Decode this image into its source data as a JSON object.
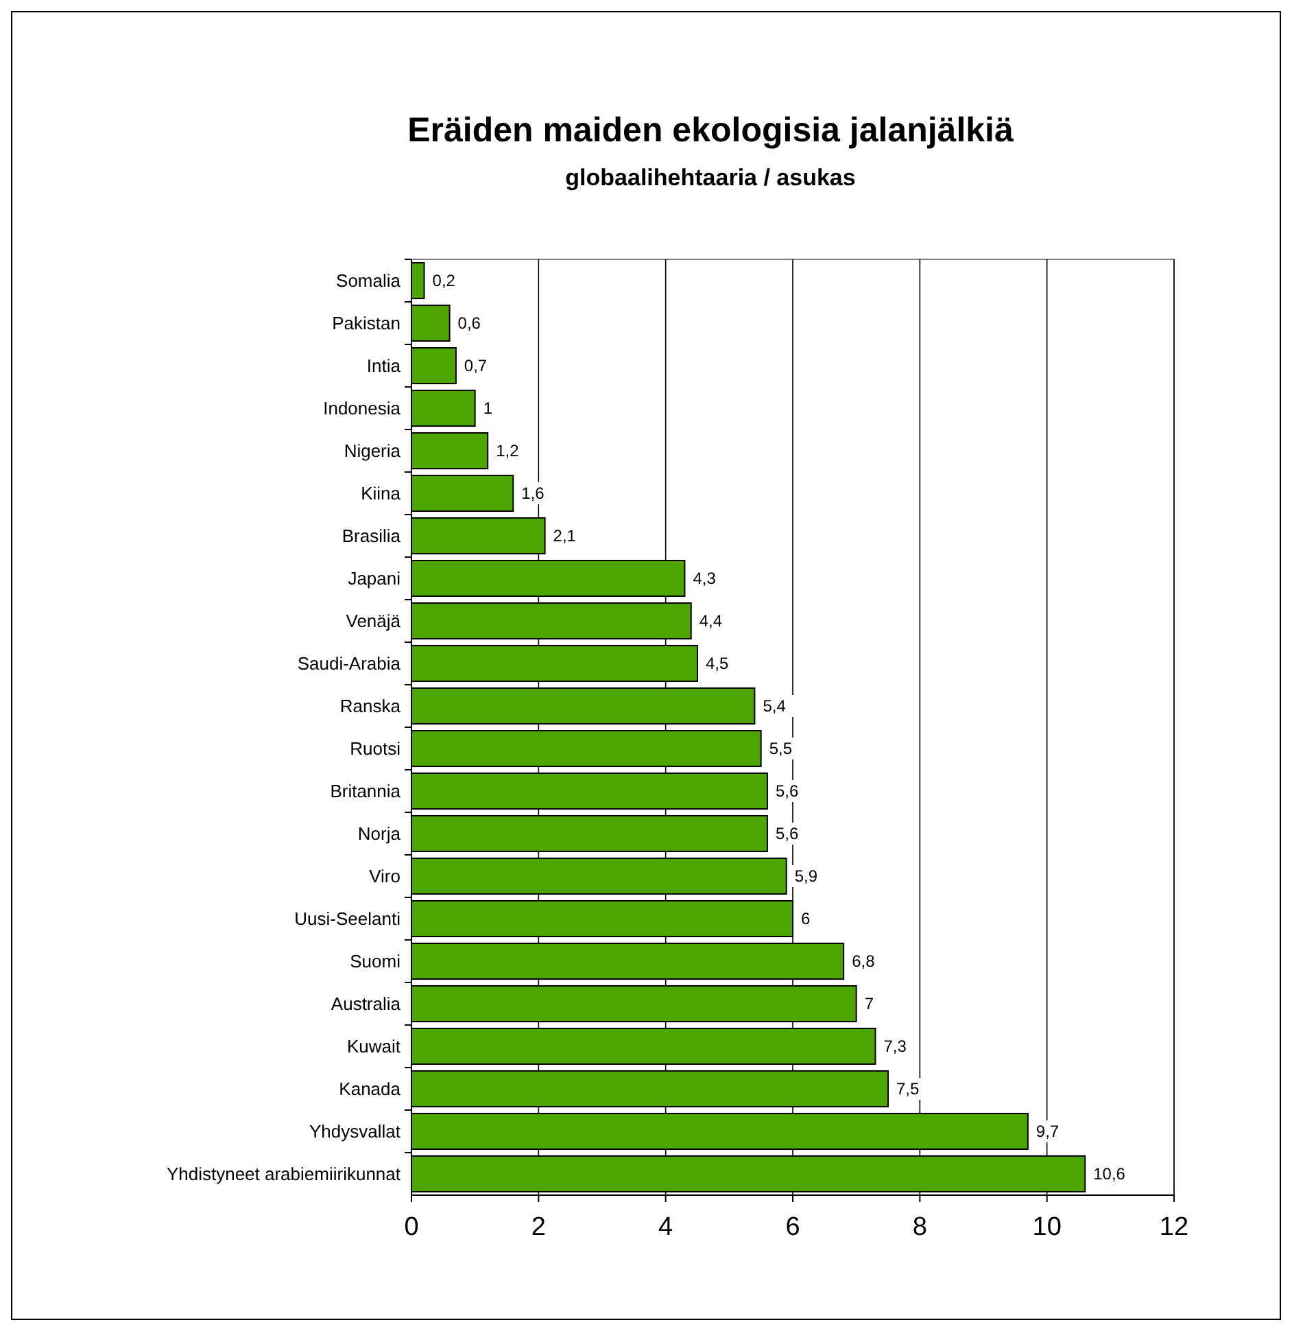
{
  "chart_data": {
    "type": "bar",
    "orientation": "horizontal",
    "title": "Eräiden maiden ekologisia jalanjälkiä",
    "subtitle": "globaalihehtaaria / asukas",
    "categories": [
      "Somalia",
      "Pakistan",
      "Intia",
      "Indonesia",
      "Nigeria",
      "Kiina",
      "Brasilia",
      "Japani",
      "Venäjä",
      "Saudi-Arabia",
      "Ranska",
      "Ruotsi",
      "Britannia",
      "Norja",
      "Viro",
      "Uusi-Seelanti",
      "Suomi",
      "Australia",
      "Kuwait",
      "Kanada",
      "Yhdysvallat",
      "Yhdistyneet arabiemiirikunnat"
    ],
    "values": [
      0.2,
      0.6,
      0.7,
      1,
      1.2,
      1.6,
      2.1,
      4.3,
      4.4,
      4.5,
      5.4,
      5.5,
      5.6,
      5.6,
      5.9,
      6,
      6.8,
      7,
      7.3,
      7.5,
      9.7,
      10.6
    ],
    "value_labels": [
      "0,2",
      "0,6",
      "0,7",
      "1",
      "1,2",
      "1,6",
      "2,1",
      "4,3",
      "4,4",
      "4,5",
      "5,4",
      "5,5",
      "5,6",
      "5,6",
      "5,9",
      "6",
      "6,8",
      "7",
      "7,3",
      "7,5",
      "9,7",
      "10,6"
    ],
    "color": "#4da600",
    "xlim": [
      0,
      12
    ],
    "xticks": [
      0,
      2,
      4,
      6,
      8,
      10,
      12
    ],
    "grid": "x"
  }
}
